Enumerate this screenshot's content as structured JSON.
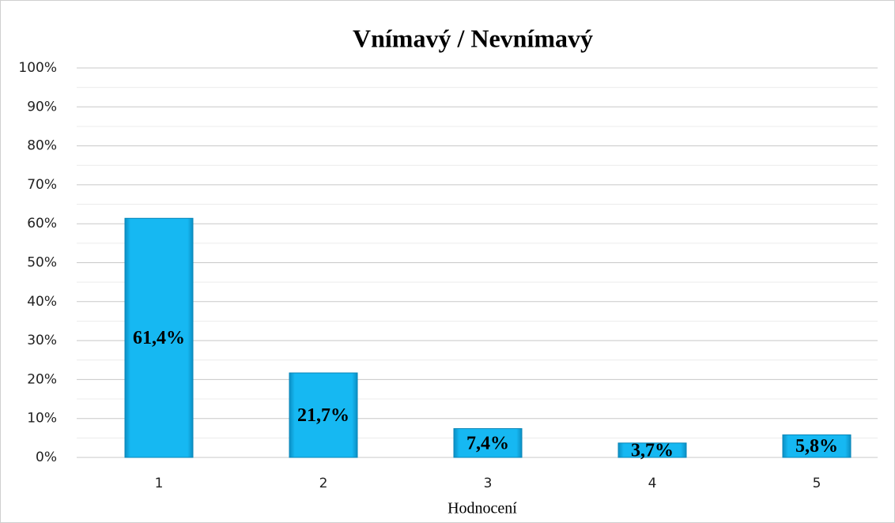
{
  "chart_data": {
    "type": "bar",
    "title": "Vnímavý / Nevnímavý",
    "x_label": "Hodnocení",
    "categories": [
      "1",
      "2",
      "3",
      "4",
      "5"
    ],
    "values": [
      61.4,
      21.7,
      7.4,
      3.7,
      5.8
    ],
    "value_labels": [
      "61,4%",
      "21,7%",
      "7,4%",
      "3,7%",
      "5,8%"
    ],
    "color": "#12b6f2",
    "ylim": [
      0,
      100
    ],
    "yticks": [
      {
        "value": 0,
        "label": "0%"
      },
      {
        "value": 10,
        "label": "10%"
      },
      {
        "value": 20,
        "label": "20%"
      },
      {
        "value": 30,
        "label": "30%"
      },
      {
        "value": 40,
        "label": "40%"
      },
      {
        "value": 50,
        "label": "50%"
      },
      {
        "value": 60,
        "label": "60%"
      },
      {
        "value": 70,
        "label": "70%"
      },
      {
        "value": 80,
        "label": "80%"
      },
      {
        "value": 90,
        "label": "90%"
      },
      {
        "value": 100,
        "label": "100%"
      }
    ],
    "minor_yticks": [
      5,
      15,
      25,
      35,
      45,
      55,
      65,
      75,
      85,
      95
    ],
    "grid": true
  }
}
